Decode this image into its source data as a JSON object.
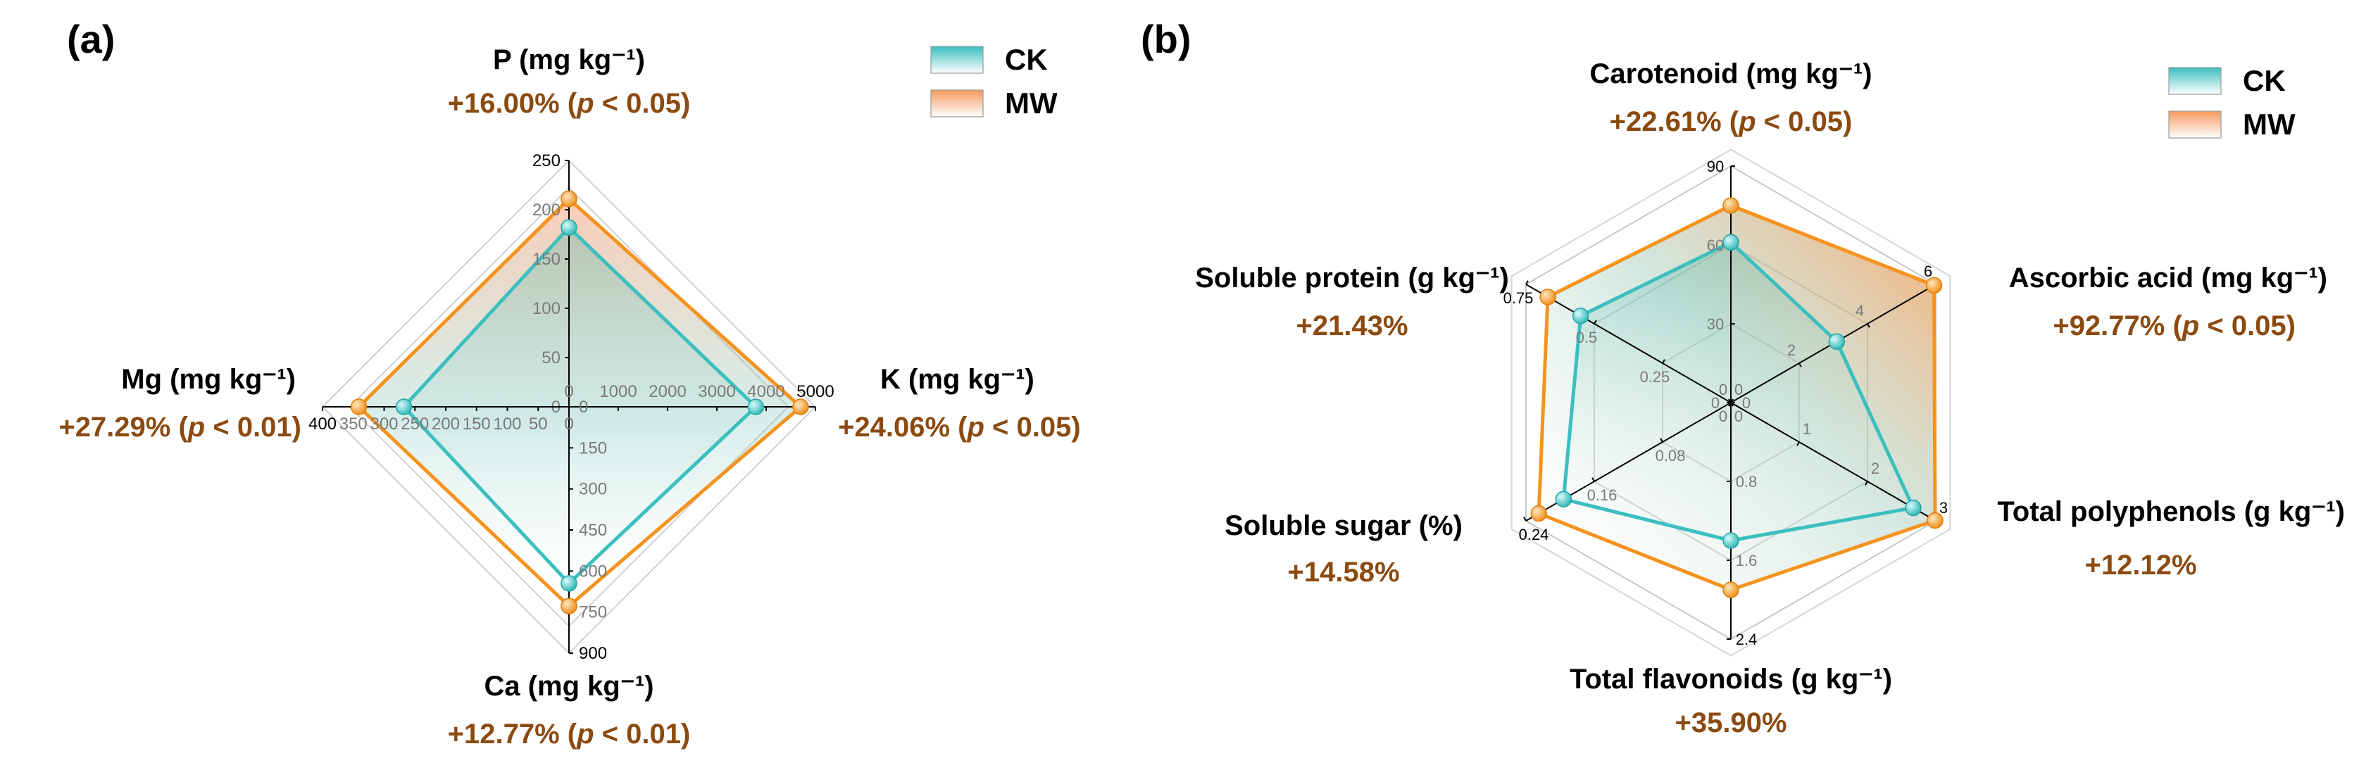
{
  "colors": {
    "ck": "#3BBFBF",
    "mw": "#F5931E",
    "grid": "#C8C8C8",
    "annot": "#8B4A10"
  },
  "chart_data": [
    {
      "type": "radar",
      "panel_label": "(a)",
      "legend": [
        "CK",
        "MW"
      ],
      "axes": [
        {
          "name": "P",
          "unit": "(mg kg⁻¹)",
          "change": "+16.00%",
          "sig": "p < 0.05",
          "ticks": [
            0,
            50,
            100,
            150,
            200,
            250
          ],
          "max": 250
        },
        {
          "name": "K",
          "unit": "(mg kg⁻¹)",
          "change": "+24.06%",
          "sig": "p < 0.05",
          "ticks": [
            0,
            1000,
            2000,
            3000,
            4000,
            5000
          ],
          "max": 5000
        },
        {
          "name": "Ca",
          "unit": "(mg kg⁻¹)",
          "change": "+12.77%",
          "sig": "p < 0.01",
          "ticks": [
            0,
            150,
            300,
            450,
            600,
            750,
            900
          ],
          "max": 900
        },
        {
          "name": "Mg",
          "unit": "(mg kg⁻¹)",
          "change": "+27.29%",
          "sig": "p < 0.01",
          "ticks": [
            0,
            50,
            100,
            150,
            200,
            250,
            300,
            350,
            400
          ],
          "max": 400
        }
      ],
      "series": [
        {
          "name": "CK",
          "values": [
            182,
            3790,
            645,
            268
          ]
        },
        {
          "name": "MW",
          "values": [
            211,
            4700,
            728,
            341
          ]
        }
      ]
    },
    {
      "type": "radar",
      "panel_label": "(b)",
      "legend": [
        "CK",
        "MW"
      ],
      "axes": [
        {
          "name": "Carotenoid",
          "unit": "(mg kg⁻¹)",
          "change": "+22.61%",
          "sig": "p < 0.05",
          "ticks": [
            0,
            30,
            60,
            90
          ],
          "max": 90
        },
        {
          "name": "Ascorbic acid",
          "unit": "(mg kg⁻¹)",
          "change": "+92.77%",
          "sig": "p < 0.05",
          "ticks": [
            0,
            2,
            4,
            6
          ],
          "max": 6
        },
        {
          "name": "Total polyphenols",
          "unit": "(g kg⁻¹)",
          "change": "+12.12%",
          "sig": "",
          "ticks": [
            0,
            1,
            2,
            3
          ],
          "max": 3
        },
        {
          "name": "Total flavonoids",
          "unit": "(g kg⁻¹)",
          "change": "+35.90%",
          "sig": "",
          "ticks": [
            0,
            0.8,
            1.6,
            2.4
          ],
          "max": 2.4
        },
        {
          "name": "Soluble sugar",
          "unit": "(%)",
          "change": "+14.58%",
          "sig": "",
          "ticks": [
            0,
            0.08,
            0.16,
            0.24
          ],
          "max": 0.24
        },
        {
          "name": "Soluble protein",
          "unit": "(g kg⁻¹)",
          "change": "+21.43%",
          "sig": "",
          "ticks": [
            0,
            0.25,
            0.5,
            0.75
          ],
          "max": 0.75
        }
      ],
      "series": [
        {
          "name": "CK",
          "values": [
            61,
            3.1,
            2.67,
            1.4,
            0.196,
            0.55
          ]
        },
        {
          "name": "MW",
          "values": [
            75,
            5.95,
            2.99,
            1.9,
            0.225,
            0.67
          ]
        }
      ]
    }
  ]
}
